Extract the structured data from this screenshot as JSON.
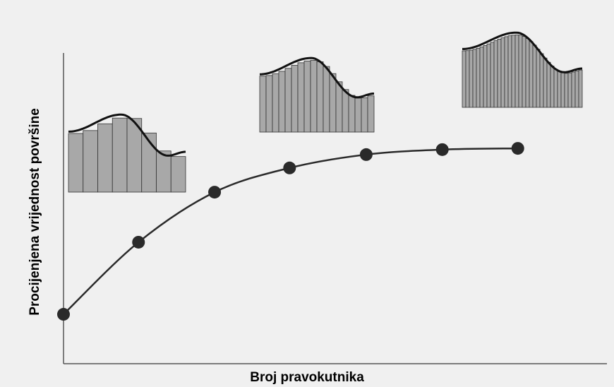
{
  "chart_data": {
    "type": "line",
    "x_label": "Broj pravokutnika",
    "y_label": "Procijenjena vrijednost površine",
    "x": [
      0,
      13.8,
      27.8,
      41.6,
      55.7,
      69.7,
      83.6
    ],
    "series": [
      {
        "color": "#2a2a2a",
        "values": [
          15.9,
          39.1,
          55.2,
          63,
          67.3,
          68.9,
          69.3
        ]
      }
    ],
    "xlim": [
      0,
      100
    ],
    "ylim": [
      0,
      100
    ]
  }
}
